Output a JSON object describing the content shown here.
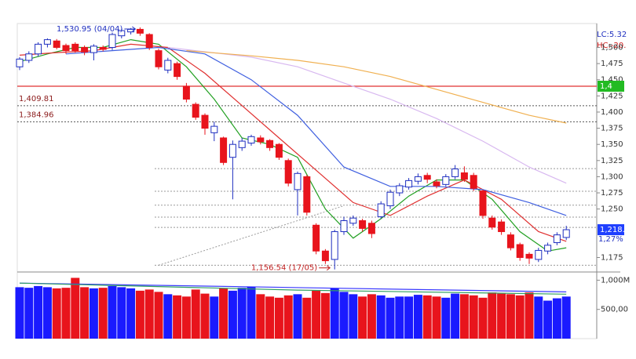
{
  "chart_data": {
    "type": "candlestick",
    "ylim": [
      1155,
      1537
    ],
    "yticks": [
      {
        "value": 1500,
        "label": "1,500"
      },
      {
        "value": 1475,
        "label": "1,475"
      },
      {
        "value": 1450,
        "label": "1,450"
      },
      {
        "value": 1425,
        "label": "1,425"
      },
      {
        "value": 1400,
        "label": "1,400"
      },
      {
        "value": 1375,
        "label": "1,375"
      },
      {
        "value": 1350,
        "label": "1,350"
      },
      {
        "value": 1325,
        "label": "1,325"
      },
      {
        "value": 1300,
        "label": "1,300"
      },
      {
        "value": 1275,
        "label": "1,275"
      },
      {
        "value": 1250,
        "label": "1,250"
      },
      {
        "value": 1175,
        "label": "1,175"
      }
    ],
    "up_color": "#1f2fc0",
    "down_color": "#e8141c",
    "open": [
      1470,
      1480,
      1490,
      1505,
      1510,
      1503,
      1505,
      1500,
      1492,
      1500,
      1500,
      1518,
      1524,
      1528,
      1520,
      1495,
      1465,
      1475,
      1440,
      1412,
      1395,
      1368,
      1360,
      1330,
      1345,
      1352,
      1360,
      1356,
      1350,
      1325,
      1280,
      1300,
      1225,
      1185,
      1172,
      1215,
      1228,
      1232,
      1228,
      1238,
      1255,
      1275,
      1284,
      1293,
      1302,
      1292,
      1288,
      1300,
      1306,
      1302,
      1278,
      1236,
      1230,
      1210,
      1195,
      1180,
      1172,
      1185,
      1198,
      1206
    ],
    "high": [
      1485,
      1494,
      1508,
      1514,
      1513,
      1506,
      1508,
      1503,
      1505,
      1503,
      1523,
      1529,
      1530,
      1530.95,
      1522,
      1498,
      1484,
      1478,
      1445,
      1415,
      1398,
      1385,
      1362,
      1356,
      1360,
      1365,
      1364,
      1358,
      1352,
      1328,
      1308,
      1303,
      1228,
      1188,
      1218,
      1238,
      1240,
      1235,
      1232,
      1262,
      1280,
      1290,
      1298,
      1305,
      1306,
      1296,
      1304,
      1318,
      1316,
      1306,
      1280,
      1240,
      1234,
      1214,
      1198,
      1183,
      1190,
      1198,
      1214,
      1224
    ],
    "low": [
      1465,
      1476,
      1486,
      1500,
      1497,
      1490,
      1492,
      1488,
      1480,
      1494,
      1496,
      1514,
      1520,
      1518,
      1496,
      1466,
      1460,
      1450,
      1415,
      1388,
      1365,
      1355,
      1318,
      1265,
      1340,
      1348,
      1350,
      1340,
      1326,
      1285,
      1240,
      1240,
      1180,
      1165,
      1156.54,
      1210,
      1224,
      1215,
      1205,
      1235,
      1250,
      1270,
      1280,
      1288,
      1290,
      1282,
      1285,
      1296,
      1292,
      1278,
      1235,
      1218,
      1210,
      1186,
      1170,
      1165,
      1168,
      1180,
      1194,
      1202
    ],
    "close": [
      1482,
      1490,
      1505,
      1512,
      1500,
      1495,
      1495,
      1493,
      1502,
      1497,
      1520,
      1526,
      1528,
      1522,
      1500,
      1470,
      1480,
      1455,
      1420,
      1392,
      1375,
      1378,
      1322,
      1350,
      1355,
      1362,
      1354,
      1345,
      1330,
      1290,
      1305,
      1245,
      1185,
      1170,
      1215,
      1232,
      1236,
      1220,
      1212,
      1258,
      1276,
      1286,
      1294,
      1300,
      1296,
      1286,
      1300,
      1312,
      1296,
      1282,
      1240,
      1222,
      1215,
      1190,
      1175,
      1174,
      1186,
      1194,
      1210,
      1218
    ],
    "lines": [
      {
        "color": "#22a022",
        "x": [
          0,
          3,
          6,
          9,
          12,
          15,
          18,
          21,
          24,
          27,
          30,
          33,
          36,
          39,
          42,
          45,
          48,
          51,
          54,
          57,
          59
        ],
        "values": [
          1478,
          1490,
          1500,
          1500,
          1512,
          1505,
          1470,
          1420,
          1360,
          1350,
          1330,
          1250,
          1205,
          1235,
          1270,
          1295,
          1295,
          1265,
          1215,
          1185,
          1190
        ]
      },
      {
        "color": "#e03030",
        "x": [
          0,
          4,
          8,
          12,
          16,
          20,
          24,
          28,
          32,
          36,
          40,
          44,
          48,
          52,
          56,
          59
        ],
        "values": [
          1488,
          1492,
          1495,
          1505,
          1500,
          1460,
          1410,
          1360,
          1310,
          1260,
          1240,
          1270,
          1295,
          1265,
          1215,
          1200
        ]
      },
      {
        "color": "#4060e0",
        "x": [
          5,
          10,
          15,
          20,
          25,
          30,
          35,
          40,
          45,
          50,
          55,
          59
        ],
        "values": [
          1490,
          1495,
          1500,
          1490,
          1450,
          1395,
          1315,
          1285,
          1285,
          1280,
          1260,
          1240
        ]
      },
      {
        "color": "#d8b8f0",
        "x": [
          16,
          25,
          30,
          35,
          40,
          45,
          50,
          55,
          59
        ],
        "values": [
          1500,
          1485,
          1470,
          1445,
          1420,
          1390,
          1355,
          1315,
          1290
        ]
      },
      {
        "color": "#f0b050",
        "x": [
          18,
          25,
          30,
          35,
          40,
          45,
          50,
          55,
          59
        ],
        "values": [
          1495,
          1487,
          1480,
          1470,
          1455,
          1435,
          1415,
          1395,
          1383
        ]
      }
    ],
    "level_line": {
      "value": 1440,
      "color": "#e03030"
    },
    "labeled_levels": [
      {
        "value": 1409.81,
        "label": "1,409.81"
      },
      {
        "value": 1384.96,
        "label": "1,384.96"
      }
    ],
    "levels": [
      1312.5,
      1277.5,
      1256,
      1237.5,
      1221.5,
      1163
    ],
    "trendline": {
      "x": [
        15,
        35
      ],
      "values": [
        1163,
        1255
      ]
    },
    "annotations": [
      {
        "label": "1,530.95 (04/04)",
        "value": 1530.95
      },
      {
        "label": "1,156.54 (17/05)",
        "value": 1156.54
      }
    ],
    "price_tags": [
      {
        "label": "1,4",
        "value": 1440,
        "color": "#22bb22"
      },
      {
        "label": "1,218.",
        "value": 1218,
        "color": "#1f3fff"
      }
    ],
    "change_label": "1,27%",
    "lc_label": "LC:5.32",
    "hc_label": "HC:-20.",
    "volume": {
      "ylim": [
        0,
        1100
      ],
      "yticks": [
        {
          "value": 1000,
          "label": "1,000M"
        },
        {
          "value": 500,
          "label": "500,00"
        }
      ],
      "values": [
        880,
        870,
        900,
        880,
        860,
        870,
        1040,
        880,
        860,
        870,
        900,
        880,
        860,
        820,
        840,
        800,
        760,
        740,
        720,
        840,
        770,
        720,
        860,
        820,
        870,
        890,
        760,
        720,
        700,
        740,
        760,
        700,
        820,
        780,
        860,
        800,
        760,
        720,
        760,
        740,
        700,
        720,
        720,
        750,
        740,
        720,
        700,
        770,
        760,
        740,
        700,
        790,
        770,
        760,
        740,
        790,
        720,
        650,
        690,
        720
      ],
      "up_color": "#1a1aff",
      "down_color": "#e8141c",
      "lines": [
        {
          "color": "#3a3aff",
          "x": [
            0,
            59
          ],
          "values": [
            950,
            800
          ]
        },
        {
          "color": "#30a060",
          "x": [
            0,
            30,
            59
          ],
          "values": [
            950,
            830,
            760
          ]
        }
      ]
    }
  }
}
